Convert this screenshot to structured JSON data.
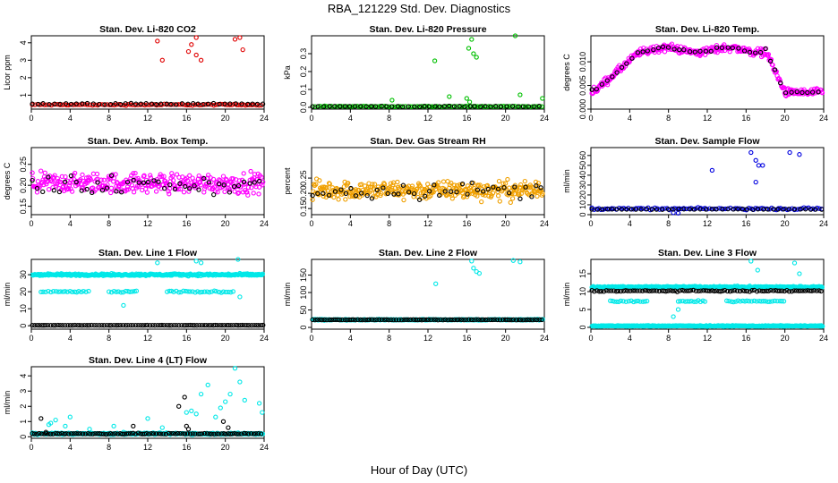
{
  "figure": {
    "title": "RBA_121229  Std. Dev. Diagnostics",
    "xlabel": "Hour of Day (UTC)"
  },
  "chart_data": [
    {
      "type": "scatter",
      "title": "Stan. Dev. Li-820 CO2",
      "ylabel": "Licor ppm",
      "xlim": [
        0,
        24
      ],
      "ylim": [
        0.2,
        4.4
      ],
      "xticks": [
        0,
        4,
        8,
        12,
        16,
        20,
        24
      ],
      "yticks": [
        1,
        2,
        3,
        4
      ],
      "ytick_labels": [
        "1",
        "2",
        "3",
        "4"
      ],
      "series": [
        {
          "name": "red",
          "color": "#e00000",
          "base": 0.45,
          "noise": 0.06,
          "outliers": [
            [
              13.5,
              3.0
            ],
            [
              16.5,
              3.9
            ],
            [
              17,
              4.3
            ],
            [
              17,
              3.3
            ],
            [
              16.2,
              3.5
            ],
            [
              21,
              4.2
            ],
            [
              21.5,
              4.3
            ],
            [
              21.8,
              3.6
            ],
            [
              13,
              4.1
            ],
            [
              17.5,
              3.0
            ]
          ]
        },
        {
          "name": "black",
          "color": "#000000",
          "base": 0.5,
          "noise": 0.06,
          "sparse": true
        }
      ]
    },
    {
      "type": "scatter",
      "title": "Stan. Dev. Li-820 Pressure",
      "ylabel": "kPa",
      "xlim": [
        0,
        24
      ],
      "ylim": [
        -0.01,
        0.4
      ],
      "xticks": [
        0,
        4,
        8,
        12,
        16,
        20,
        24
      ],
      "yticks": [
        0.0,
        0.1,
        0.2,
        0.3
      ],
      "ytick_labels": [
        "0.0",
        "0.1",
        "0.2",
        "0.3"
      ],
      "series": [
        {
          "name": "green",
          "color": "#00c000",
          "base": 0.005,
          "noise": 0.003,
          "outliers": [
            [
              8.3,
              0.04
            ],
            [
              12.7,
              0.26
            ],
            [
              14.2,
              0.06
            ],
            [
              16.2,
              0.33
            ],
            [
              16.5,
              0.38
            ],
            [
              16.7,
              0.3
            ],
            [
              17,
              0.28
            ],
            [
              16.3,
              0.03
            ],
            [
              21,
              0.4
            ],
            [
              21.5,
              0.07
            ],
            [
              16,
              0.05
            ],
            [
              23.8,
              0.05
            ]
          ]
        },
        {
          "name": "black",
          "color": "#000000",
          "base": 0.005,
          "noise": 0.003,
          "sparse": true
        }
      ]
    },
    {
      "type": "scatter",
      "title": "Stan. Dev. Li-820 Temp.",
      "ylabel": "degrees C",
      "xlim": [
        0,
        24
      ],
      "ylim": [
        0,
        0.0155
      ],
      "xticks": [
        0,
        4,
        8,
        12,
        16,
        20,
        24
      ],
      "yticks": [
        0.0,
        0.005,
        0.01
      ],
      "ytick_labels": [
        "0.000",
        "0.005",
        "0.010"
      ],
      "series": [
        {
          "name": "magenta",
          "color": "#ff00ff",
          "curve": "temp",
          "noise": 0.0012,
          "dense": true
        },
        {
          "name": "black",
          "color": "#000000",
          "curve": "temp",
          "noise": 0.0004,
          "sparse": true
        }
      ]
    },
    {
      "type": "scatter",
      "title": "Stan. Dev. Amb. Box Temp.",
      "ylabel": "degrees C",
      "xlim": [
        0,
        24
      ],
      "ylim": [
        0.13,
        0.29
      ],
      "xticks": [
        0,
        4,
        8,
        12,
        16,
        20,
        24
      ],
      "yticks": [
        0.15,
        0.2,
        0.25
      ],
      "ytick_labels": [
        "0.15",
        "0.20",
        "0.25"
      ],
      "series": [
        {
          "name": "magenta",
          "color": "#ff00ff",
          "base": 0.205,
          "noise": 0.035,
          "dense": true
        },
        {
          "name": "black",
          "color": "#000000",
          "base": 0.2,
          "noise": 0.035,
          "sparse": true
        }
      ]
    },
    {
      "type": "scatter",
      "title": "Stan. Dev. Gas Stream RH",
      "ylabel": "percent",
      "xlim": [
        0,
        24
      ],
      "ylim": [
        0.13,
        0.35
      ],
      "xticks": [
        0,
        4,
        8,
        12,
        16,
        20,
        24
      ],
      "yticks": [
        0.15,
        0.2,
        0.25
      ],
      "ytick_labels": [
        "0.15",
        "0.20",
        "0.25"
      ],
      "series": [
        {
          "name": "orange",
          "color": "#f0a000",
          "base": 0.21,
          "noise": 0.045,
          "dense": true
        },
        {
          "name": "black",
          "color": "#000000",
          "base": 0.21,
          "noise": 0.04,
          "sparse": true
        }
      ]
    },
    {
      "type": "scatter",
      "title": "Stan. Dev. Sample Flow",
      "ylabel": "ml/min",
      "xlim": [
        0,
        24
      ],
      "ylim": [
        0,
        68
      ],
      "xticks": [
        0,
        4,
        8,
        12,
        16,
        20,
        24
      ],
      "yticks": [
        0,
        10,
        20,
        30,
        40,
        50,
        60
      ],
      "ytick_labels": [
        "0",
        "10",
        "20",
        "30",
        "40",
        "50",
        "60"
      ],
      "series": [
        {
          "name": "blue",
          "color": "#0000e0",
          "base": 6,
          "noise": 1.5,
          "outliers": [
            [
              12.5,
              45
            ],
            [
              16.5,
              63
            ],
            [
              17,
              55
            ],
            [
              17.3,
              50
            ],
            [
              17.7,
              50
            ],
            [
              17,
              33
            ],
            [
              20.5,
              63
            ],
            [
              21.5,
              61
            ],
            [
              8.5,
              2
            ],
            [
              9,
              1.5
            ]
          ]
        },
        {
          "name": "black",
          "color": "#000000",
          "base": 5.5,
          "noise": 0.5,
          "sparse": true
        }
      ]
    },
    {
      "type": "scatter",
      "title": "Stan. Dev. Line 1 Flow",
      "ylabel": "ml/min",
      "xlim": [
        0,
        24
      ],
      "ylim": [
        -2,
        39
      ],
      "xticks": [
        0,
        4,
        8,
        12,
        16,
        20,
        24
      ],
      "yticks": [
        0,
        10,
        20,
        30
      ],
      "ytick_labels": [
        "0",
        "10",
        "20",
        "30"
      ],
      "series": [
        {
          "name": "cyan-high",
          "color": "#00e8e8",
          "base": 30,
          "noise": 0.9,
          "dense": true,
          "outliers": [
            [
              13,
              37
            ],
            [
              17,
              38
            ],
            [
              17.5,
              37
            ],
            [
              21.3,
              39
            ],
            [
              9.5,
              12
            ],
            [
              21.5,
              17
            ]
          ]
        },
        {
          "name": "cyan-mid",
          "color": "#00e8e8",
          "base": 20,
          "noise": 0.7,
          "segments": [
            [
              1,
              6
            ],
            [
              8,
              11
            ],
            [
              14,
              21
            ]
          ]
        },
        {
          "name": "black",
          "color": "#000000",
          "base": 0.3,
          "noise": 0.1
        }
      ]
    },
    {
      "type": "scatter",
      "title": "Stan. Dev. Line 2 Flow",
      "ylabel": "ml/min",
      "xlim": [
        0,
        24
      ],
      "ylim": [
        -5,
        195
      ],
      "xticks": [
        0,
        4,
        8,
        12,
        16,
        20,
        24
      ],
      "yticks": [
        0,
        50,
        100,
        150
      ],
      "ytick_labels": [
        "0",
        "50",
        "100",
        "150"
      ],
      "series": [
        {
          "name": "cyan",
          "color": "#00e8e8",
          "base": 22,
          "noise": 2,
          "dense": true,
          "outliers": [
            [
              12.8,
              125
            ],
            [
              16.5,
              190
            ],
            [
              17,
              160
            ],
            [
              17.3,
              155
            ],
            [
              16.7,
              170
            ],
            [
              20.8,
              192
            ],
            [
              21.5,
              188
            ]
          ]
        },
        {
          "name": "black",
          "color": "#000000",
          "base": 22,
          "noise": 1
        }
      ]
    },
    {
      "type": "scatter",
      "title": "Stan. Dev. Line 3 Flow",
      "ylabel": "ml/min",
      "xlim": [
        0,
        24
      ],
      "ylim": [
        -0.5,
        19
      ],
      "xticks": [
        0,
        4,
        8,
        12,
        16,
        20,
        24
      ],
      "yticks": [
        0,
        5,
        10,
        15
      ],
      "ytick_labels": [
        "0",
        "5",
        "10",
        "15"
      ],
      "series": [
        {
          "name": "cyan-high",
          "color": "#00e8e8",
          "base": 11.3,
          "noise": 0.3,
          "dense": true,
          "outliers": [
            [
              16.5,
              18.5
            ],
            [
              17.2,
              16
            ],
            [
              21,
              18
            ],
            [
              21.5,
              15
            ],
            [
              8.5,
              3
            ],
            [
              9,
              5
            ]
          ]
        },
        {
          "name": "cyan-mid",
          "color": "#00e8e8",
          "base": 7.3,
          "noise": 0.3,
          "segments": [
            [
              2,
              6
            ],
            [
              9,
              12
            ],
            [
              14,
              20
            ]
          ]
        },
        {
          "name": "cyan-low",
          "color": "#00e8e8",
          "base": 0.4,
          "noise": 0.2,
          "dense": true
        },
        {
          "name": "black",
          "color": "#000000",
          "base": 10.2,
          "noise": 0.25
        }
      ]
    },
    {
      "type": "scatter",
      "title": "Stan. Dev. Line 4 (LT) Flow",
      "ylabel": "ml/min",
      "xlim": [
        0,
        24
      ],
      "ylim": [
        -0.1,
        4.6
      ],
      "xticks": [
        0,
        4,
        8,
        12,
        16,
        20,
        24
      ],
      "yticks": [
        0,
        1,
        2,
        3,
        4
      ],
      "ytick_labels": [
        "0",
        "1",
        "2",
        "3",
        "4"
      ],
      "series": [
        {
          "name": "cyan",
          "color": "#00e8e8",
          "base": 0.2,
          "noise": 0.08,
          "dense": true,
          "outliers": [
            [
              1.8,
              0.8
            ],
            [
              2,
              0.9
            ],
            [
              2.5,
              1.1
            ],
            [
              3.5,
              0.7
            ],
            [
              4,
              1.3
            ],
            [
              6,
              0.5
            ],
            [
              8.5,
              0.7
            ],
            [
              12,
              1.2
            ],
            [
              16,
              1.6
            ],
            [
              16.5,
              1.7
            ],
            [
              17,
              1.5
            ],
            [
              17.5,
              2.8
            ],
            [
              18.2,
              3.4
            ],
            [
              19,
              1.3
            ],
            [
              19.5,
              1.9
            ],
            [
              20,
              2.3
            ],
            [
              20.5,
              2.8
            ],
            [
              21,
              4.5
            ],
            [
              21.5,
              3.6
            ],
            [
              22,
              2.4
            ],
            [
              23.5,
              2.2
            ],
            [
              23.8,
              1.6
            ],
            [
              13.5,
              0.6
            ],
            [
              9.5,
              0.3
            ]
          ]
        },
        {
          "name": "black",
          "color": "#000000",
          "base": 0.2,
          "noise": 0.05,
          "outliers": [
            [
              1,
              1.2
            ],
            [
              10.5,
              0.7
            ],
            [
              15.2,
              2.0
            ],
            [
              15.8,
              2.6
            ],
            [
              16,
              0.7
            ],
            [
              19.8,
              1.0
            ],
            [
              20.3,
              0.6
            ],
            [
              16.2,
              0.5
            ],
            [
              1.5,
              0.3
            ]
          ]
        }
      ]
    }
  ]
}
